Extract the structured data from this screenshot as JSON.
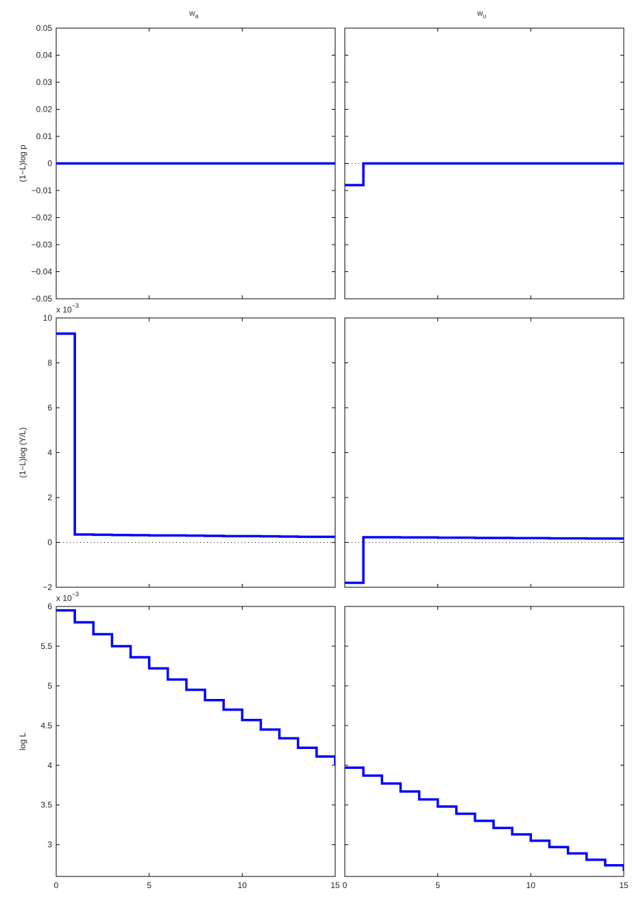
{
  "figure": {
    "column_titles": [
      {
        "base": "w",
        "sub": "a"
      },
      {
        "base": "w",
        "sub": "υ"
      }
    ],
    "line_color": "#0000ff",
    "zero_line_color": "#000000"
  },
  "chart_data": [
    {
      "type": "line",
      "step": true,
      "row": 0,
      "col": 0,
      "ylabel": "(1−L)log p",
      "xlim": [
        0,
        15
      ],
      "ylim": [
        -0.05,
        0.05
      ],
      "yticks": [
        -0.05,
        -0.04,
        -0.03,
        -0.02,
        -0.01,
        0,
        0.01,
        0.02,
        0.03,
        0.04,
        0.05
      ],
      "ytick_labels": [
        "−0.05",
        "−0.04",
        "−0.03",
        "−0.02",
        "−0.01",
        "0",
        "0.01",
        "0.02",
        "0.03",
        "0.04",
        "0.05"
      ],
      "xticks": [
        0,
        5,
        10,
        15
      ],
      "xtick_labels": [],
      "exponent_label": "",
      "x": [
        0,
        1,
        2,
        3,
        4,
        5,
        6,
        7,
        8,
        9,
        10,
        11,
        12,
        13,
        14,
        15
      ],
      "y": [
        0,
        0,
        0,
        0,
        0,
        0,
        0,
        0,
        0,
        0,
        0,
        0,
        0,
        0,
        0,
        0
      ]
    },
    {
      "type": "line",
      "step": true,
      "row": 0,
      "col": 1,
      "ylabel": "",
      "xlim": [
        0,
        15
      ],
      "ylim": [
        -0.05,
        0.05
      ],
      "yticks": [
        -0.05,
        -0.04,
        -0.03,
        -0.02,
        -0.01,
        0,
        0.01,
        0.02,
        0.03,
        0.04,
        0.05
      ],
      "ytick_labels": [],
      "xticks": [
        0,
        5,
        10,
        15
      ],
      "xtick_labels": [],
      "exponent_label": "",
      "x": [
        0,
        1,
        2,
        3,
        4,
        5,
        6,
        7,
        8,
        9,
        10,
        11,
        12,
        13,
        14,
        15
      ],
      "y": [
        -0.008,
        0,
        0,
        0,
        0,
        0,
        0,
        0,
        0,
        0,
        0,
        0,
        0,
        0,
        0,
        0
      ]
    },
    {
      "type": "line",
      "step": true,
      "row": 1,
      "col": 0,
      "ylabel": "(1−L)log (Y/L)",
      "xlim": [
        0,
        15
      ],
      "ylim": [
        -2,
        10
      ],
      "yticks": [
        -2,
        0,
        2,
        4,
        6,
        8,
        10
      ],
      "ytick_labels": [
        "−2",
        "0",
        "2",
        "4",
        "6",
        "8",
        "10"
      ],
      "xticks": [
        0,
        5,
        10,
        15
      ],
      "xtick_labels": [],
      "exponent_label": "x 10",
      "exponent_power": "−3",
      "x": [
        0,
        1,
        2,
        3,
        4,
        5,
        6,
        7,
        8,
        9,
        10,
        11,
        12,
        13,
        14,
        15
      ],
      "y": [
        9.3,
        0.35,
        0.34,
        0.33,
        0.32,
        0.31,
        0.31,
        0.3,
        0.29,
        0.28,
        0.28,
        0.27,
        0.26,
        0.25,
        0.25,
        0.24
      ]
    },
    {
      "type": "line",
      "step": true,
      "row": 1,
      "col": 1,
      "ylabel": "",
      "xlim": [
        0,
        15
      ],
      "ylim": [
        -2,
        10
      ],
      "yticks": [
        -2,
        0,
        2,
        4,
        6,
        8,
        10
      ],
      "ytick_labels": [],
      "xticks": [
        0,
        5,
        10,
        15
      ],
      "xtick_labels": [],
      "exponent_label": "",
      "x": [
        0,
        1,
        2,
        3,
        4,
        5,
        6,
        7,
        8,
        9,
        10,
        11,
        12,
        13,
        14,
        15
      ],
      "y": [
        -1.8,
        0.23,
        0.23,
        0.22,
        0.22,
        0.21,
        0.21,
        0.2,
        0.2,
        0.19,
        0.19,
        0.18,
        0.18,
        0.17,
        0.17,
        0.16
      ]
    },
    {
      "type": "line",
      "step": true,
      "row": 2,
      "col": 0,
      "ylabel": "log L",
      "xlim": [
        0,
        15
      ],
      "ylim": [
        2.6,
        6
      ],
      "yticks": [
        3,
        3.5,
        4,
        4.5,
        5,
        5.5,
        6
      ],
      "ytick_labels": [
        "3",
        "3.5",
        "4",
        "4.5",
        "5",
        "5.5",
        "6"
      ],
      "xticks": [
        0,
        5,
        10,
        15
      ],
      "xtick_labels": [
        "0",
        "5",
        "10",
        "15"
      ],
      "exponent_label": "x 10",
      "exponent_power": "−3",
      "x": [
        0,
        1,
        2,
        3,
        4,
        5,
        6,
        7,
        8,
        9,
        10,
        11,
        12,
        13,
        14,
        15
      ],
      "y": [
        5.95,
        5.8,
        5.65,
        5.5,
        5.36,
        5.22,
        5.08,
        4.95,
        4.82,
        4.7,
        4.57,
        4.45,
        4.34,
        4.22,
        4.11,
        4.0
      ]
    },
    {
      "type": "line",
      "step": true,
      "row": 2,
      "col": 1,
      "ylabel": "",
      "xlim": [
        0,
        15
      ],
      "ylim": [
        2.6,
        6
      ],
      "yticks": [
        3,
        3.5,
        4,
        4.5,
        5,
        5.5,
        6
      ],
      "ytick_labels": [],
      "xticks": [
        0,
        5,
        10,
        15
      ],
      "xtick_labels": [
        "0",
        "5",
        "10",
        "15"
      ],
      "exponent_label": "",
      "x": [
        0,
        1,
        2,
        3,
        4,
        5,
        6,
        7,
        8,
        9,
        10,
        11,
        12,
        13,
        14,
        15
      ],
      "y": [
        3.97,
        3.87,
        3.77,
        3.67,
        3.57,
        3.48,
        3.39,
        3.3,
        3.21,
        3.13,
        3.05,
        2.97,
        2.89,
        2.81,
        2.74,
        2.67
      ]
    }
  ]
}
